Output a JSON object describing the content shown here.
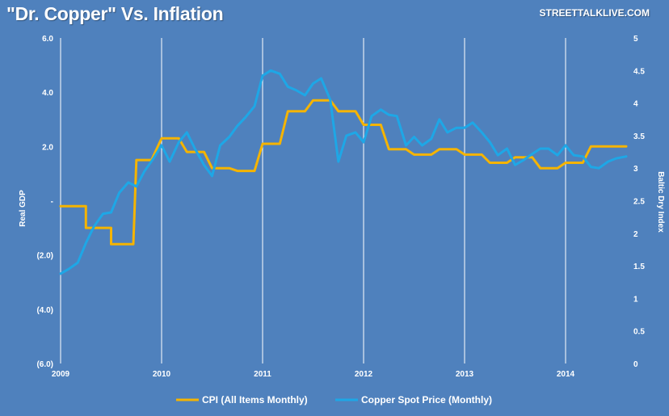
{
  "header": {
    "title": "\"Dr. Copper\" Vs. Inflation",
    "source": "STREETTALKLIVE.COM"
  },
  "chart_data": {
    "type": "line",
    "x_ticks": [
      "2009",
      "2010",
      "2011",
      "2012",
      "2013",
      "2014"
    ],
    "xlim": [
      2009.0,
      2014.6
    ],
    "left_axis": {
      "label": "Real GDP",
      "ticks": [
        "6.0",
        "4.0",
        "2.0",
        "-",
        "(2.0)",
        "(4.0)",
        "(6.0)"
      ],
      "ylim": [
        -6,
        6
      ]
    },
    "right_axis": {
      "label": "Baltic Dry Index",
      "ticks": [
        "5",
        "4.5",
        "4",
        "3.5",
        "3",
        "2.5",
        "2",
        "1.5",
        "1",
        "0.5",
        "0"
      ],
      "ylim": [
        0,
        5
      ]
    },
    "grid": "vertical",
    "legend_position": "bottom",
    "colors": {
      "background": "#4f81bd",
      "grid": "#ffffff",
      "cpi": "#f5b400",
      "copper": "#1ea7e6"
    },
    "series": [
      {
        "name": "CPI (All Items Monthly)",
        "axis": "left",
        "points": [
          [
            2009.0,
            -0.2
          ],
          [
            2009.25,
            -0.2
          ],
          [
            2009.25,
            -1.0
          ],
          [
            2009.5,
            -1.0
          ],
          [
            2009.5,
            -1.6
          ],
          [
            2009.72,
            -1.6
          ],
          [
            2009.75,
            1.5
          ],
          [
            2009.9,
            1.5
          ],
          [
            2010.0,
            2.3
          ],
          [
            2010.17,
            2.3
          ],
          [
            2010.25,
            1.8
          ],
          [
            2010.42,
            1.8
          ],
          [
            2010.5,
            1.2
          ],
          [
            2010.67,
            1.2
          ],
          [
            2010.75,
            1.1
          ],
          [
            2010.92,
            1.1
          ],
          [
            2011.0,
            2.1
          ],
          [
            2011.17,
            2.1
          ],
          [
            2011.25,
            3.3
          ],
          [
            2011.42,
            3.3
          ],
          [
            2011.5,
            3.7
          ],
          [
            2011.67,
            3.7
          ],
          [
            2011.75,
            3.3
          ],
          [
            2011.92,
            3.3
          ],
          [
            2012.0,
            2.8
          ],
          [
            2012.17,
            2.8
          ],
          [
            2012.25,
            1.9
          ],
          [
            2012.42,
            1.9
          ],
          [
            2012.5,
            1.7
          ],
          [
            2012.67,
            1.7
          ],
          [
            2012.75,
            1.9
          ],
          [
            2012.92,
            1.9
          ],
          [
            2013.0,
            1.7
          ],
          [
            2013.17,
            1.7
          ],
          [
            2013.25,
            1.4
          ],
          [
            2013.42,
            1.4
          ],
          [
            2013.5,
            1.6
          ],
          [
            2013.67,
            1.6
          ],
          [
            2013.75,
            1.2
          ],
          [
            2013.92,
            1.2
          ],
          [
            2014.0,
            1.4
          ],
          [
            2014.17,
            1.4
          ],
          [
            2014.25,
            2.0
          ],
          [
            2014.6,
            2.0
          ]
        ]
      },
      {
        "name": "Copper Spot Price (Monthly)",
        "axis": "right",
        "points": [
          [
            2009.0,
            1.38
          ],
          [
            2009.08,
            1.45
          ],
          [
            2009.17,
            1.55
          ],
          [
            2009.25,
            1.85
          ],
          [
            2009.33,
            2.1
          ],
          [
            2009.42,
            2.3
          ],
          [
            2009.5,
            2.32
          ],
          [
            2009.58,
            2.62
          ],
          [
            2009.67,
            2.78
          ],
          [
            2009.75,
            2.72
          ],
          [
            2009.83,
            2.95
          ],
          [
            2009.92,
            3.15
          ],
          [
            2010.0,
            3.35
          ],
          [
            2010.08,
            3.1
          ],
          [
            2010.17,
            3.4
          ],
          [
            2010.25,
            3.55
          ],
          [
            2010.33,
            3.3
          ],
          [
            2010.42,
            3.05
          ],
          [
            2010.5,
            2.88
          ],
          [
            2010.58,
            3.35
          ],
          [
            2010.67,
            3.48
          ],
          [
            2010.75,
            3.65
          ],
          [
            2010.83,
            3.78
          ],
          [
            2010.92,
            3.95
          ],
          [
            2011.0,
            4.42
          ],
          [
            2011.08,
            4.5
          ],
          [
            2011.17,
            4.45
          ],
          [
            2011.25,
            4.25
          ],
          [
            2011.33,
            4.2
          ],
          [
            2011.42,
            4.12
          ],
          [
            2011.5,
            4.3
          ],
          [
            2011.58,
            4.38
          ],
          [
            2011.67,
            4.05
          ],
          [
            2011.75,
            3.1
          ],
          [
            2011.83,
            3.5
          ],
          [
            2011.92,
            3.55
          ],
          [
            2012.0,
            3.4
          ],
          [
            2012.08,
            3.8
          ],
          [
            2012.17,
            3.9
          ],
          [
            2012.25,
            3.82
          ],
          [
            2012.33,
            3.8
          ],
          [
            2012.42,
            3.35
          ],
          [
            2012.5,
            3.48
          ],
          [
            2012.58,
            3.35
          ],
          [
            2012.67,
            3.45
          ],
          [
            2012.75,
            3.75
          ],
          [
            2012.83,
            3.55
          ],
          [
            2012.92,
            3.62
          ],
          [
            2013.0,
            3.62
          ],
          [
            2013.08,
            3.7
          ],
          [
            2013.17,
            3.55
          ],
          [
            2013.25,
            3.4
          ],
          [
            2013.33,
            3.2
          ],
          [
            2013.42,
            3.3
          ],
          [
            2013.5,
            3.05
          ],
          [
            2013.58,
            3.12
          ],
          [
            2013.67,
            3.22
          ],
          [
            2013.75,
            3.3
          ],
          [
            2013.83,
            3.3
          ],
          [
            2013.92,
            3.2
          ],
          [
            2014.0,
            3.35
          ],
          [
            2014.08,
            3.2
          ],
          [
            2014.17,
            3.18
          ],
          [
            2014.25,
            3.02
          ],
          [
            2014.33,
            3.0
          ],
          [
            2014.42,
            3.1
          ],
          [
            2014.5,
            3.15
          ],
          [
            2014.6,
            3.18
          ]
        ]
      }
    ]
  }
}
